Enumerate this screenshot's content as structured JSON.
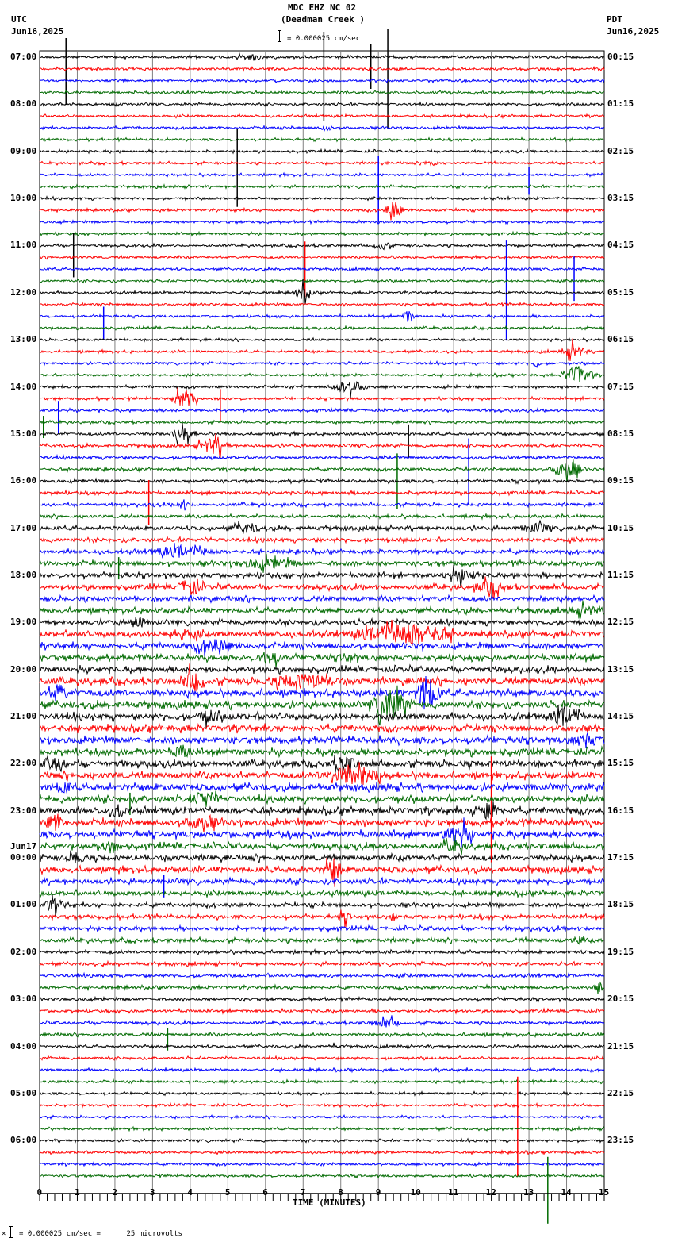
{
  "header": {
    "title": "MDC EHZ NC 02",
    "subtitle": "(Deadman Creek )",
    "scale_text": "= 0.000025 cm/sec",
    "left_tz": "UTC",
    "left_date": "Jun16,2025",
    "right_tz": "PDT",
    "right_date": "Jun16,2025"
  },
  "footer": {
    "xlabel": "TIME (MINUTES)",
    "scale_note": "= 0.000025 cm/sec =      25 microvolts",
    "scale_prefix": "×"
  },
  "colors": {
    "trace_cycle": [
      "#000000",
      "#ff0000",
      "#0000ff",
      "#006a00"
    ],
    "grid": "#808080",
    "axis": "#000000"
  },
  "chart_data": {
    "type": "line",
    "title": "MDC EHZ NC 02 (Deadman Creek )",
    "xlabel": "TIME (MINUTES)",
    "ylabel": "",
    "xlim": [
      0,
      15
    ],
    "x_ticks": [
      "0",
      "1",
      "2",
      "3",
      "4",
      "5",
      "6",
      "7",
      "8",
      "9",
      "10",
      "11",
      "12",
      "13",
      "14",
      "15"
    ],
    "minor_tick_step": 0.2,
    "grid": true,
    "traces_per_hour": 4,
    "trace_minutes": 15,
    "left_hour_labels": [
      "07:00",
      "08:00",
      "09:00",
      "10:00",
      "11:00",
      "12:00",
      "13:00",
      "14:00",
      "15:00",
      "16:00",
      "17:00",
      "18:00",
      "19:00",
      "20:00",
      "21:00",
      "22:00",
      "23:00",
      "00:00",
      "01:00",
      "02:00",
      "03:00",
      "04:00",
      "05:00",
      "06:00"
    ],
    "right_hour_labels": [
      "00:15",
      "01:15",
      "02:15",
      "03:15",
      "04:15",
      "05:15",
      "06:15",
      "07:15",
      "08:15",
      "09:15",
      "10:15",
      "11:15",
      "12:15",
      "13:15",
      "14:15",
      "15:15",
      "16:15",
      "17:15",
      "18:15",
      "19:15",
      "20:15",
      "21:15",
      "22:15",
      "23:15"
    ],
    "date_change": {
      "hour_index": 17,
      "label": "Jun17"
    },
    "scale": "0.000025 cm/sec = 25 microvolts",
    "noise_level": [
      1.5,
      1.5,
      1.5,
      1.5,
      1.5,
      1.5,
      1.5,
      1.5,
      1.5,
      1.5,
      1.5,
      1.5,
      1.5,
      1.5,
      1.5,
      1.5,
      1.5,
      1.5,
      1.5,
      1.5,
      1.5,
      1.5,
      1.5,
      1.5,
      1.5,
      1.5,
      1.5,
      1.5,
      1.6,
      1.6,
      1.6,
      1.6,
      1.8,
      1.8,
      1.8,
      1.8,
      2,
      2,
      2,
      2,
      2.5,
      2.5,
      2.5,
      3,
      3,
      3,
      3,
      3,
      3,
      3.5,
      3.5,
      3.5,
      3.5,
      4,
      4,
      4,
      4,
      4,
      4,
      4,
      4,
      4,
      4,
      4,
      4,
      4,
      4,
      3.5,
      3.5,
      3.5,
      3,
      3,
      2.5,
      2.5,
      2.5,
      2.5,
      2,
      2,
      2,
      2,
      1.8,
      1.8,
      1.8,
      1.8,
      1.6,
      1.6,
      1.6,
      1.6,
      1.5,
      1.5,
      1.5,
      1.5,
      1.5,
      1.5,
      1.5,
      1.5
    ],
    "events": [
      {
        "trace": 0,
        "min": 5.6,
        "amp": 4,
        "dur": 0.5
      },
      {
        "trace": 0,
        "min": 0.7,
        "amp": 60,
        "dur": 0.03,
        "spike": true
      },
      {
        "trace": 0,
        "min": 7.55,
        "amp": 80,
        "dur": 0.03,
        "spike": true
      },
      {
        "trace": 0,
        "min": 8.8,
        "amp": 40,
        "dur": 0.03,
        "spike": true
      },
      {
        "trace": 0,
        "min": 9.25,
        "amp": 90,
        "dur": 0.03,
        "spike": true
      },
      {
        "trace": 6,
        "min": 7.6,
        "amp": 6,
        "dur": 0.2
      },
      {
        "trace": 8,
        "min": 5.25,
        "amp": 70,
        "dur": 0.03,
        "spike": true
      },
      {
        "trace": 9,
        "min": 10.4,
        "amp": 6,
        "dur": 0.2
      },
      {
        "trace": 10,
        "min": 9.0,
        "amp": 60,
        "dur": 0.03,
        "spike": true
      },
      {
        "trace": 10,
        "min": 13.0,
        "amp": 25,
        "dur": 0.03,
        "spike": true
      },
      {
        "trace": 13,
        "min": 9.4,
        "amp": 14,
        "dur": 0.3
      },
      {
        "trace": 16,
        "min": 9.1,
        "amp": 6,
        "dur": 0.3
      },
      {
        "trace": 16,
        "min": 0.9,
        "amp": 40,
        "dur": 0.03,
        "spike": true
      },
      {
        "trace": 17,
        "min": 7.05,
        "amp": 50,
        "dur": 0.03,
        "spike": true
      },
      {
        "trace": 18,
        "min": 12.4,
        "amp": 90,
        "dur": 0.03,
        "spike": true
      },
      {
        "trace": 18,
        "min": 14.2,
        "amp": 40,
        "dur": 0.03,
        "spike": true
      },
      {
        "trace": 20,
        "min": 7.0,
        "amp": 10,
        "dur": 0.3
      },
      {
        "trace": 22,
        "min": 1.7,
        "amp": 30,
        "dur": 0.03,
        "spike": true
      },
      {
        "trace": 22,
        "min": 9.8,
        "amp": 10,
        "dur": 0.2
      },
      {
        "trace": 25,
        "min": 14.2,
        "amp": 10,
        "dur": 0.4
      },
      {
        "trace": 26,
        "min": 13.2,
        "amp": 8,
        "dur": 0.1
      },
      {
        "trace": 27,
        "min": 14.3,
        "amp": 14,
        "dur": 0.5
      },
      {
        "trace": 28,
        "min": 8.2,
        "amp": 10,
        "dur": 0.6
      },
      {
        "trace": 29,
        "min": 3.85,
        "amp": 14,
        "dur": 0.4
      },
      {
        "trace": 29,
        "min": 4.8,
        "amp": 30,
        "dur": 0.03,
        "spike": true
      },
      {
        "trace": 30,
        "min": 0.5,
        "amp": 30,
        "dur": 0.03,
        "spike": true
      },
      {
        "trace": 31,
        "min": 0.1,
        "amp": 20,
        "dur": 0.03,
        "spike": true
      },
      {
        "trace": 32,
        "min": 3.8,
        "amp": 12,
        "dur": 0.4
      },
      {
        "trace": 32,
        "min": 9.8,
        "amp": 30,
        "dur": 0.03,
        "spike": true
      },
      {
        "trace": 33,
        "min": 4.6,
        "amp": 12,
        "dur": 0.5
      },
      {
        "trace": 34,
        "min": 11.4,
        "amp": 60,
        "dur": 0.03,
        "spike": true
      },
      {
        "trace": 35,
        "min": 14.0,
        "amp": 14,
        "dur": 0.5
      },
      {
        "trace": 35,
        "min": 9.5,
        "amp": 50,
        "dur": 0.03,
        "spike": true
      },
      {
        "trace": 37,
        "min": 2.9,
        "amp": 40,
        "dur": 0.03,
        "spike": true
      },
      {
        "trace": 38,
        "min": 3.8,
        "amp": 8,
        "dur": 0.2
      },
      {
        "trace": 40,
        "min": 5.5,
        "amp": 6,
        "dur": 0.5
      },
      {
        "trace": 40,
        "min": 13.2,
        "amp": 6,
        "dur": 0.5
      },
      {
        "trace": 42,
        "min": 3.8,
        "amp": 8,
        "dur": 1.0
      },
      {
        "trace": 43,
        "min": 2.1,
        "amp": 20,
        "dur": 0.03,
        "spike": true
      },
      {
        "trace": 43,
        "min": 6.0,
        "amp": 6,
        "dur": 1.0
      },
      {
        "trace": 44,
        "min": 11.2,
        "amp": 8,
        "dur": 0.6
      },
      {
        "trace": 45,
        "min": 4.0,
        "amp": 12,
        "dur": 0.4
      },
      {
        "trace": 45,
        "min": 12.0,
        "amp": 8,
        "dur": 0.6
      },
      {
        "trace": 47,
        "min": 14.5,
        "amp": 6,
        "dur": 0.5
      },
      {
        "trace": 48,
        "min": 2.6,
        "amp": 8,
        "dur": 0.3
      },
      {
        "trace": 49,
        "min": 9.7,
        "amp": 16,
        "dur": 1.6
      },
      {
        "trace": 49,
        "min": 3.8,
        "amp": 6,
        "dur": 0.6
      },
      {
        "trace": 50,
        "min": 4.6,
        "amp": 10,
        "dur": 0.6
      },
      {
        "trace": 51,
        "min": 6.1,
        "amp": 10,
        "dur": 0.4
      },
      {
        "trace": 51,
        "min": 8.2,
        "amp": 6,
        "dur": 0.3
      },
      {
        "trace": 53,
        "min": 4.1,
        "amp": 14,
        "dur": 0.4
      },
      {
        "trace": 53,
        "min": 7.0,
        "amp": 8,
        "dur": 1.2
      },
      {
        "trace": 54,
        "min": 10.3,
        "amp": 28,
        "dur": 0.4
      },
      {
        "trace": 54,
        "min": 0.5,
        "amp": 12,
        "dur": 0.3
      },
      {
        "trace": 55,
        "min": 9.3,
        "amp": 24,
        "dur": 0.6
      },
      {
        "trace": 56,
        "min": 14.0,
        "amp": 14,
        "dur": 0.5
      },
      {
        "trace": 56,
        "min": 4.5,
        "amp": 8,
        "dur": 0.4
      },
      {
        "trace": 58,
        "min": 14.5,
        "amp": 8,
        "dur": 0.5
      },
      {
        "trace": 59,
        "min": 3.8,
        "amp": 8,
        "dur": 0.3
      },
      {
        "trace": 60,
        "min": 0.4,
        "amp": 8,
        "dur": 0.4
      },
      {
        "trace": 60,
        "min": 8.1,
        "amp": 12,
        "dur": 0.4
      },
      {
        "trace": 61,
        "min": 7.9,
        "amp": 12,
        "dur": 0.6
      },
      {
        "trace": 61,
        "min": 8.6,
        "amp": 12,
        "dur": 0.6
      },
      {
        "trace": 61,
        "min": 12.0,
        "amp": 60,
        "dur": 0.05,
        "spike": true
      },
      {
        "trace": 62,
        "min": 0.6,
        "amp": 8,
        "dur": 0.3
      },
      {
        "trace": 63,
        "min": 4.4,
        "amp": 12,
        "dur": 0.4
      },
      {
        "trace": 63,
        "min": 2.4,
        "amp": 20,
        "dur": 0.03,
        "spike": true
      },
      {
        "trace": 64,
        "min": 2.1,
        "amp": 8,
        "dur": 0.3
      },
      {
        "trace": 64,
        "min": 11.9,
        "amp": 12,
        "dur": 0.5
      },
      {
        "trace": 65,
        "min": 0.4,
        "amp": 10,
        "dur": 0.3
      },
      {
        "trace": 65,
        "min": 4.3,
        "amp": 8,
        "dur": 0.6
      },
      {
        "trace": 65,
        "min": 12.0,
        "amp": 50,
        "dur": 0.05,
        "spike": true
      },
      {
        "trace": 66,
        "min": 11.1,
        "amp": 14,
        "dur": 0.5
      },
      {
        "trace": 67,
        "min": 1.9,
        "amp": 10,
        "dur": 0.3
      },
      {
        "trace": 67,
        "min": 11.0,
        "amp": 8,
        "dur": 0.4
      },
      {
        "trace": 68,
        "min": 1.0,
        "amp": 8,
        "dur": 0.3
      },
      {
        "trace": 69,
        "min": 7.8,
        "amp": 16,
        "dur": 0.3
      },
      {
        "trace": 70,
        "min": 3.3,
        "amp": 20,
        "dur": 0.03,
        "spike": true
      },
      {
        "trace": 72,
        "min": 0.4,
        "amp": 8,
        "dur": 0.4
      },
      {
        "trace": 73,
        "min": 8.1,
        "amp": 8,
        "dur": 0.2
      },
      {
        "trace": 73,
        "min": 9.4,
        "amp": 8,
        "dur": 0.1
      },
      {
        "trace": 75,
        "min": 14.3,
        "amp": 6,
        "dur": 0.2
      },
      {
        "trace": 79,
        "min": 14.9,
        "amp": 6,
        "dur": 0.2
      },
      {
        "trace": 82,
        "min": 9.2,
        "amp": 6,
        "dur": 0.5
      },
      {
        "trace": 83,
        "min": 3.4,
        "amp": 20,
        "dur": 0.03,
        "spike": true
      },
      {
        "trace": 84,
        "min": 7.8,
        "amp": 8,
        "dur": 0.05
      },
      {
        "trace": 89,
        "min": 12.7,
        "amp": 90,
        "dur": 0.03,
        "spike": true
      },
      {
        "trace": 95,
        "min": 13.5,
        "amp": 60,
        "dur": 0.05,
        "spike": true
      }
    ]
  }
}
